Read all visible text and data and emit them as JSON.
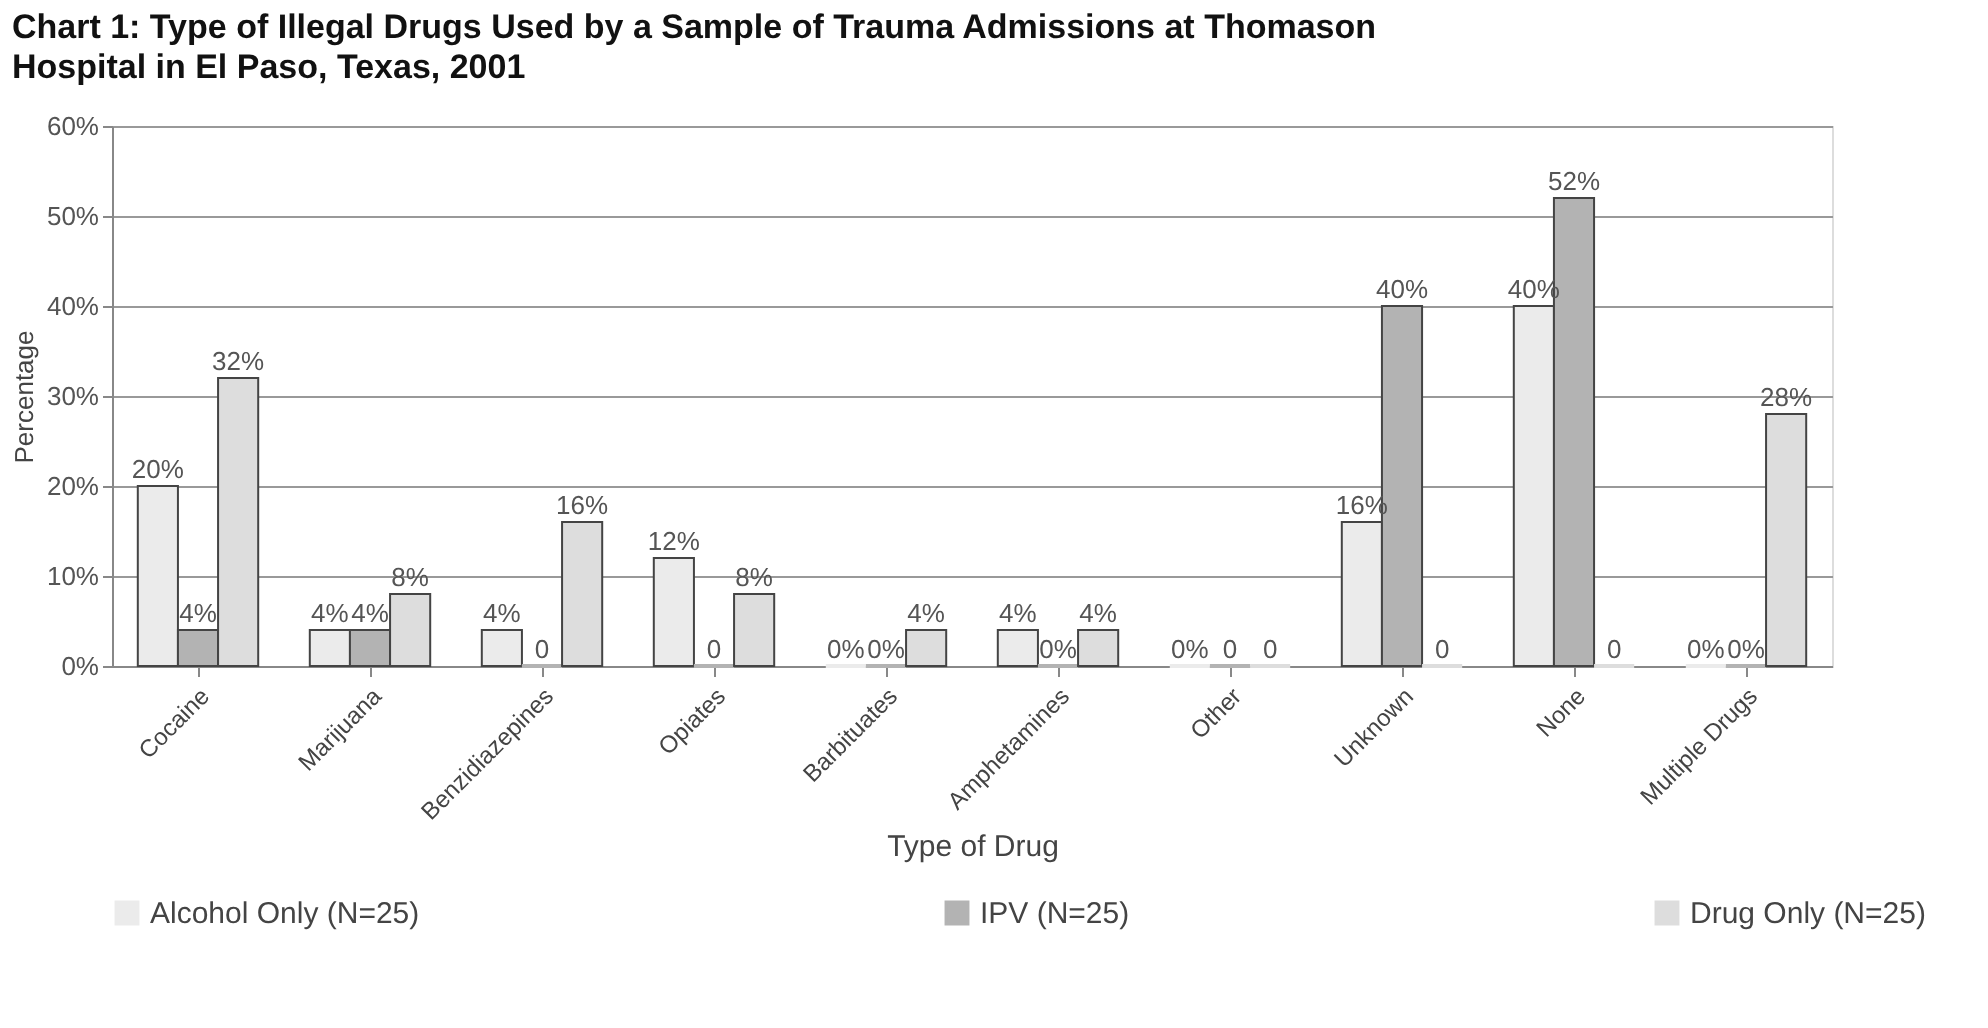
{
  "chart_data": {
    "type": "bar",
    "title": "Chart 1: Type of Illegal Drugs Used by a Sample of Trauma Admissions at Thomason Hospital in El Paso, Texas, 2001",
    "xlabel": "Type of Drug",
    "ylabel": "Percentage",
    "categories": [
      "Cocaine",
      "Marijuana",
      "Benzidiazepines",
      "Opiates",
      "Barbituates",
      "Amphetamines",
      "Other",
      "Unknown",
      "None",
      "Multiple Drugs"
    ],
    "series": [
      {
        "name": "Alcohol Only (N=25)",
        "color": "#ebebeb",
        "values": [
          20,
          4,
          4,
          12,
          0,
          4,
          0,
          16,
          40,
          0
        ],
        "value_labels": [
          "20%",
          "4%",
          "4%",
          "12%",
          "0%",
          "4%",
          "0%",
          "16%",
          "40%",
          "0%"
        ]
      },
      {
        "name": "IPV (N=25)",
        "color": "#b3b3b3",
        "values": [
          4,
          4,
          0,
          0,
          0,
          0,
          0,
          40,
          52,
          0
        ],
        "value_labels": [
          "4%",
          "4%",
          "0",
          "0",
          "0%",
          "0%",
          "0",
          "40%",
          "52%",
          "0%"
        ]
      },
      {
        "name": "Drug Only (N=25)",
        "color": "#dddddd",
        "values": [
          32,
          8,
          16,
          8,
          4,
          4,
          0,
          0,
          0,
          28
        ],
        "value_labels": [
          "32%",
          "8%",
          "16%",
          "8%",
          "4%",
          "4%",
          "0",
          "0",
          "0",
          "28%"
        ]
      }
    ],
    "ylim": [
      0,
      60
    ],
    "yticks": [
      {
        "value": 0,
        "label": "0%"
      },
      {
        "value": 10,
        "label": "10%"
      },
      {
        "value": 20,
        "label": "20%"
      },
      {
        "value": 30,
        "label": "30%"
      },
      {
        "value": 40,
        "label": "40%"
      },
      {
        "value": 50,
        "label": "50%"
      },
      {
        "value": 60,
        "label": "60%"
      }
    ],
    "grid": "y",
    "legend": "bottom"
  }
}
